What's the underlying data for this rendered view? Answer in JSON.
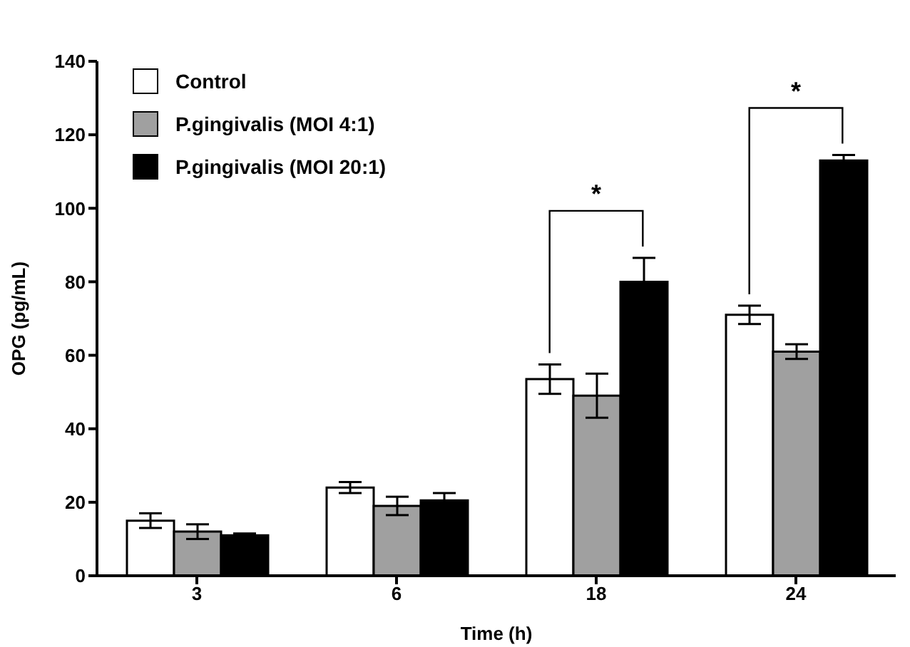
{
  "chart_data": {
    "type": "bar",
    "xlabel": "Time (h)",
    "ylabel": "OPG (pg/mL)",
    "categories": [
      "3",
      "6",
      "18",
      "24"
    ],
    "series": [
      {
        "name": "Control",
        "color": "#ffffff",
        "values": [
          15,
          24,
          53.5,
          71
        ],
        "errors": [
          2,
          1.5,
          4,
          2.5
        ]
      },
      {
        "name": "P.gingivalis (MOI 4:1)",
        "color": "#a0a0a0",
        "values": [
          12,
          19,
          49,
          61
        ],
        "errors": [
          2,
          2.5,
          6,
          2
        ]
      },
      {
        "name": "P.gingivalis (MOI 20:1)",
        "color": "#000000",
        "values": [
          11,
          20.5,
          80,
          113
        ],
        "errors": [
          0.5,
          2,
          6.5,
          1.5
        ]
      }
    ],
    "ylim": [
      0,
      140
    ],
    "yticks": [
      0,
      20,
      40,
      60,
      80,
      100,
      120,
      140
    ],
    "grid": false,
    "legend": "top left",
    "annotations": [
      "*",
      "*"
    ]
  }
}
